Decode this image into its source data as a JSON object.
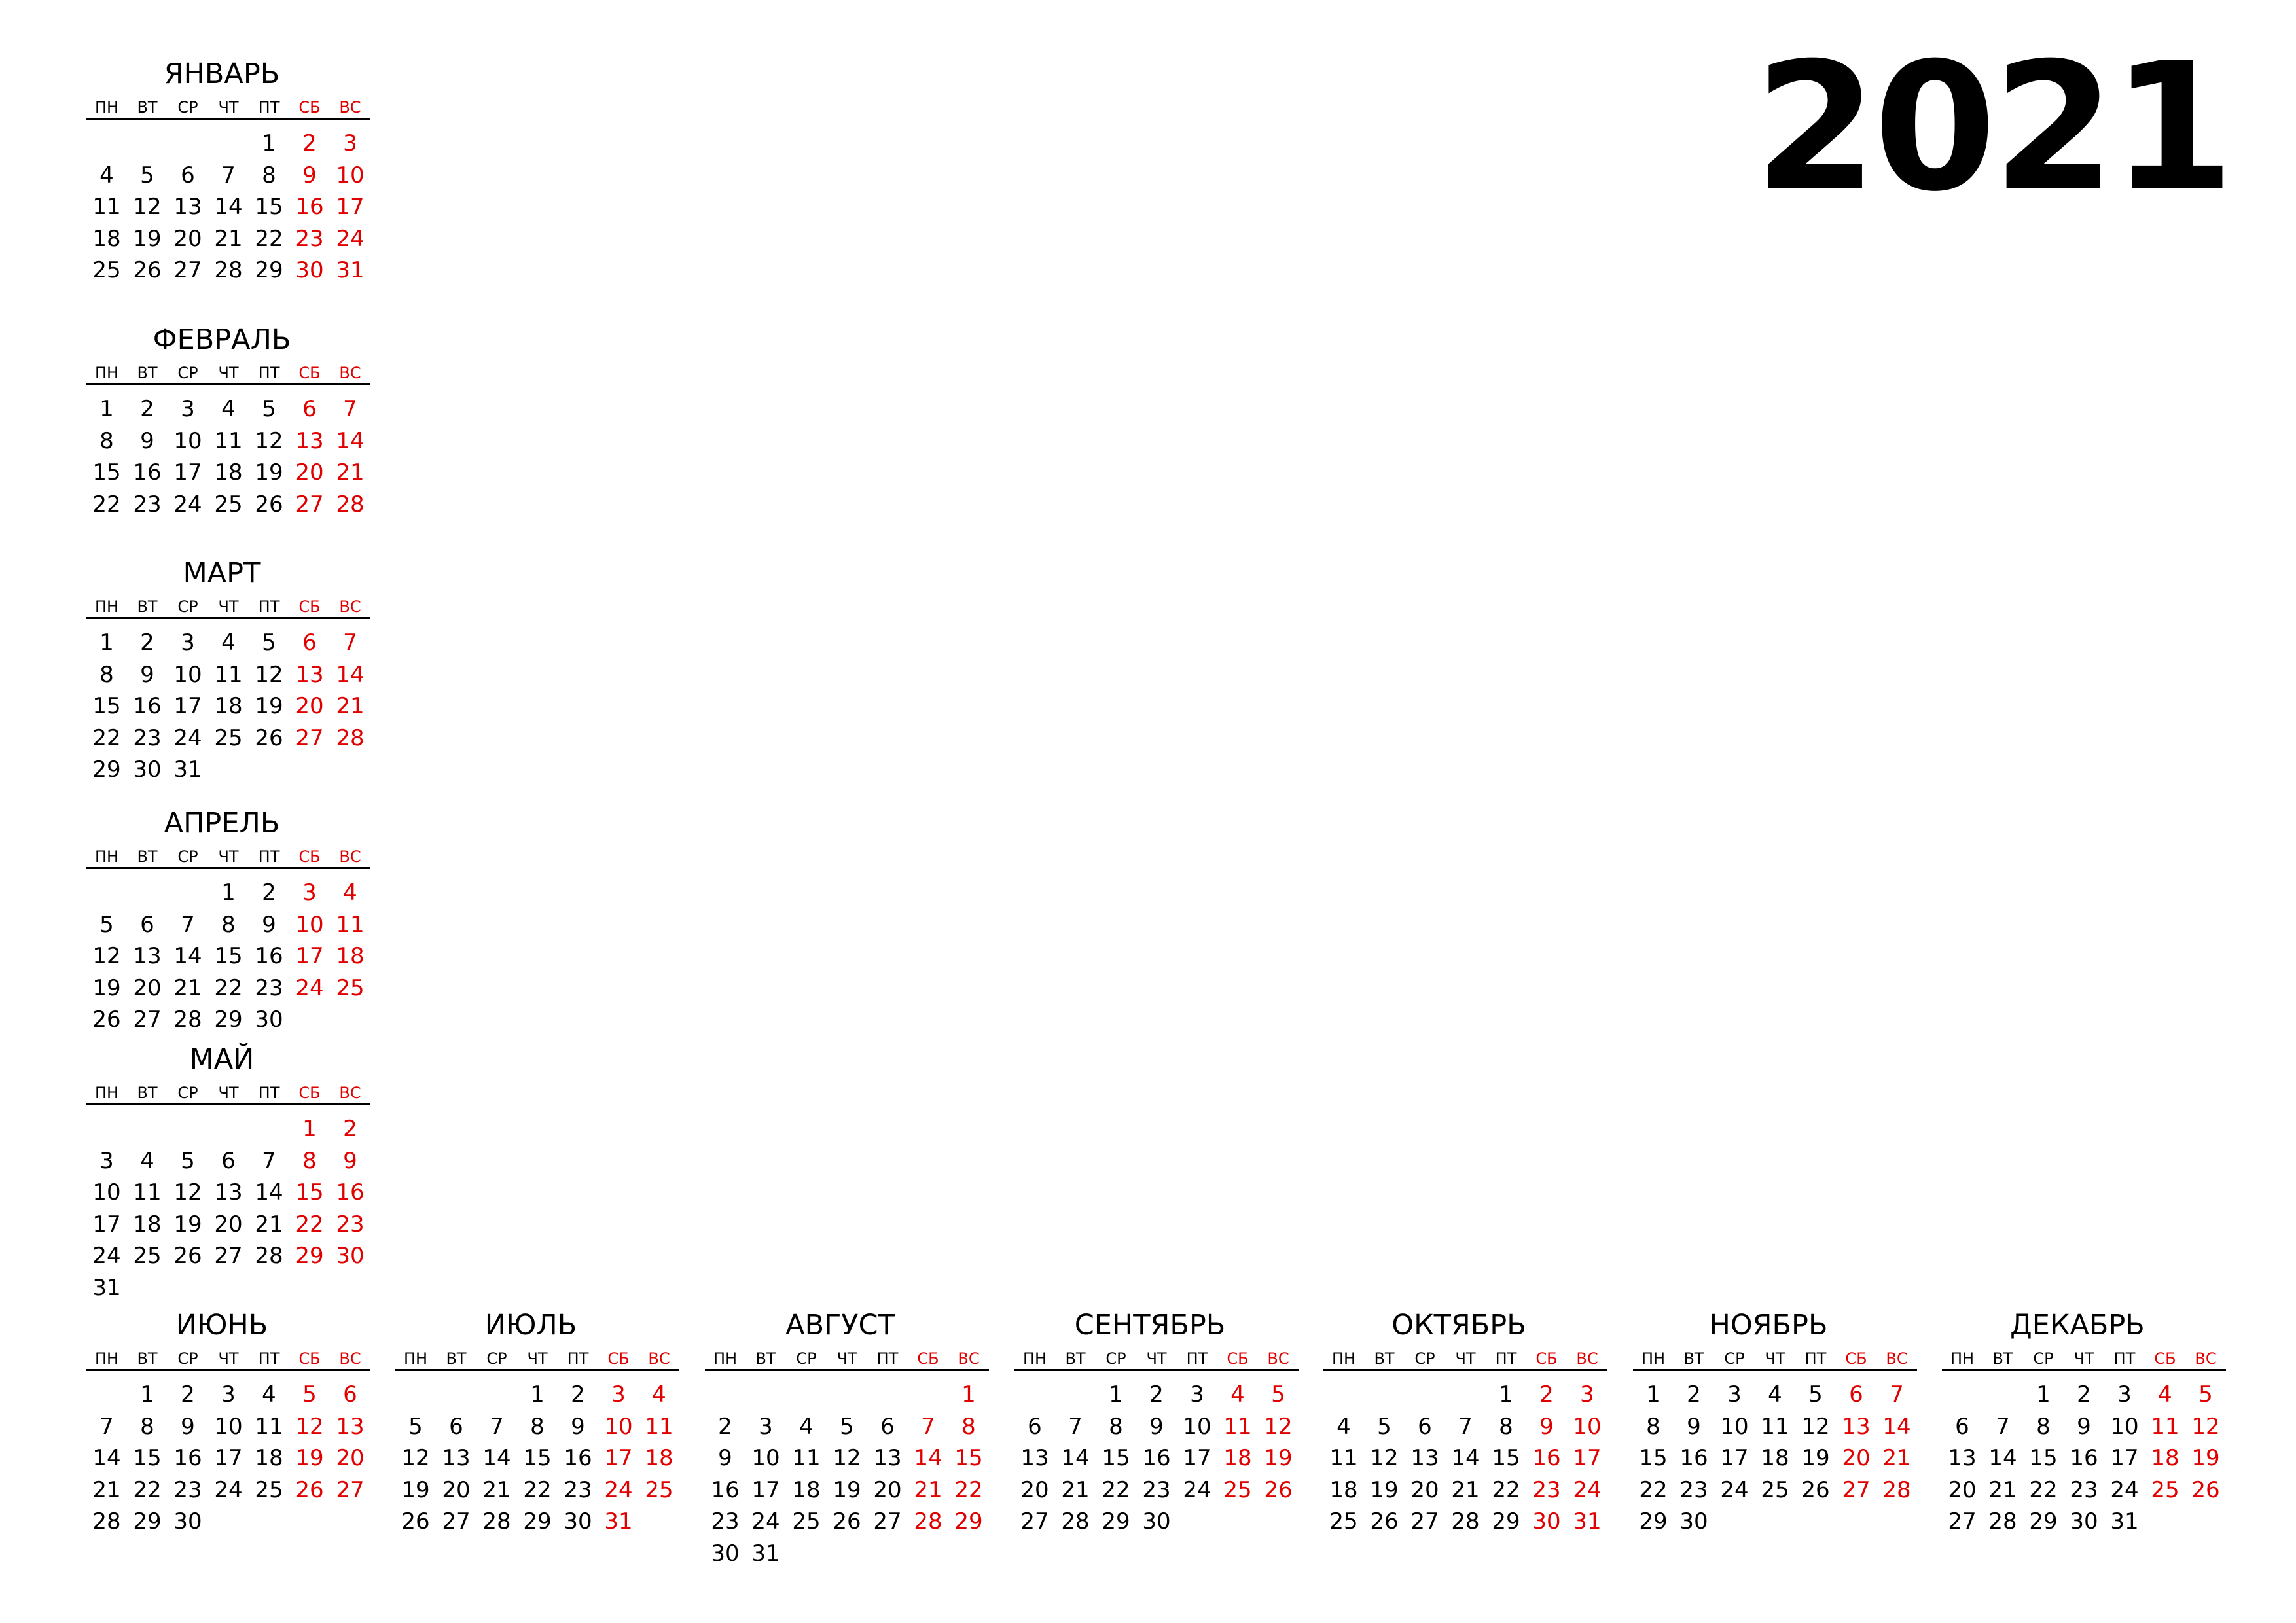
{
  "year": "2021",
  "colors": {
    "weekend": "#e00000",
    "text": "#000000",
    "background": "#ffffff"
  },
  "weekdays": [
    "ПН",
    "ВТ",
    "СР",
    "ЧТ",
    "ПТ",
    "СБ",
    "ВС"
  ],
  "months": [
    {
      "name": "ЯНВАРЬ",
      "offset": 4,
      "days": 31
    },
    {
      "name": "ФЕВРАЛЬ",
      "offset": 0,
      "days": 28
    },
    {
      "name": "МАРТ",
      "offset": 0,
      "days": 31
    },
    {
      "name": "АПРЕЛЬ",
      "offset": 3,
      "days": 30
    },
    {
      "name": "МАЙ",
      "offset": 5,
      "days": 31
    },
    {
      "name": "ИЮНЬ",
      "offset": 1,
      "days": 30
    },
    {
      "name": "ИЮЛЬ",
      "offset": 3,
      "days": 31
    },
    {
      "name": "АВГУСТ",
      "offset": 6,
      "days": 31
    },
    {
      "name": "СЕНТЯБРЬ",
      "offset": 2,
      "days": 30
    },
    {
      "name": "ОКТЯБРЬ",
      "offset": 4,
      "days": 31
    },
    {
      "name": "НОЯБРЬ",
      "offset": 0,
      "days": 30
    },
    {
      "name": "ДЕКАБРЬ",
      "offset": 2,
      "days": 31
    }
  ]
}
